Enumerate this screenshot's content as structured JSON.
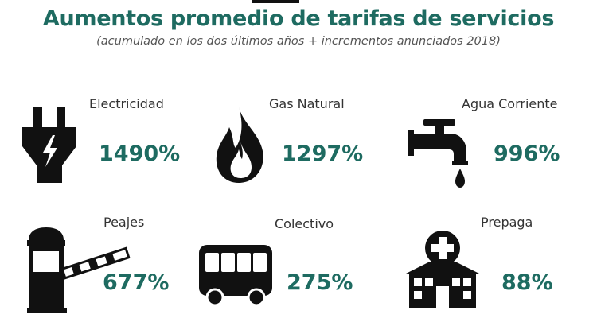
{
  "header": {
    "title": "Aumentos promedio de tarifas de servicios",
    "subtitle": "(acumulado en los dos últimos años + incrementos anunciados 2018)"
  },
  "colors": {
    "accent": "#1e6b61",
    "icon": "#111111",
    "text": "#333333"
  },
  "services": [
    {
      "label": "Electricidad",
      "value": "1490%",
      "icon": "plug-icon"
    },
    {
      "label": "Gas Natural",
      "value": "1297%",
      "icon": "flame-icon"
    },
    {
      "label": "Agua Corriente",
      "value": "996%",
      "icon": "faucet-icon"
    },
    {
      "label": "Peajes",
      "value": "677%",
      "icon": "toll-booth-icon"
    },
    {
      "label": "Colectivo",
      "value": "275%",
      "icon": "bus-icon"
    },
    {
      "label": "Prepaga",
      "value": "88%",
      "icon": "hospital-icon"
    }
  ]
}
